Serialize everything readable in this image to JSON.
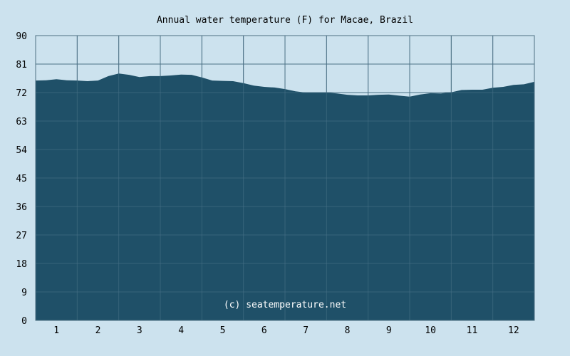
{
  "chart_data": {
    "type": "area",
    "title": "Annual water temperature (F) for Macae, Brazil",
    "xlabel": "",
    "ylabel": "",
    "x_ticks": [
      "1",
      "2",
      "3",
      "4",
      "5",
      "6",
      "7",
      "8",
      "9",
      "10",
      "11",
      "12"
    ],
    "y_ticks": [
      "0",
      "9",
      "18",
      "27",
      "36",
      "45",
      "54",
      "63",
      "72",
      "81",
      "90"
    ],
    "xlim": [
      0.5,
      12.5
    ],
    "ylim": [
      0,
      90
    ],
    "grid": true,
    "legend": "none",
    "series": [
      {
        "x": [
          0.5,
          0.75,
          1.0,
          1.25,
          1.5,
          1.75,
          2.0,
          2.25,
          2.5,
          2.75,
          3.0,
          3.25,
          3.5,
          3.75,
          4.0,
          4.25,
          4.5,
          4.75,
          5.0,
          5.25,
          5.5,
          5.75,
          6.0,
          6.25,
          6.5,
          6.75,
          7.0,
          7.25,
          7.5,
          7.75,
          8.0,
          8.25,
          8.5,
          8.75,
          9.0,
          9.25,
          9.5,
          9.75,
          10.0,
          10.25,
          10.5,
          10.75,
          11.0,
          11.25,
          11.5,
          11.75,
          12.0,
          12.25,
          12.5
        ],
        "y": [
          75.8,
          75.9,
          76.2,
          75.9,
          75.8,
          75.6,
          75.8,
          77.2,
          78.0,
          77.6,
          76.9,
          77.2,
          77.2,
          77.4,
          77.7,
          77.6,
          76.8,
          75.8,
          75.7,
          75.6,
          75.0,
          74.2,
          73.8,
          73.6,
          73.1,
          72.4,
          72.0,
          72.0,
          72.0,
          71.7,
          71.3,
          71.1,
          71.1,
          71.3,
          71.4,
          71.0,
          70.7,
          71.4,
          71.8,
          71.7,
          72.1,
          72.8,
          72.9,
          72.9,
          73.5,
          73.8,
          74.4,
          74.6,
          75.4
        ]
      }
    ],
    "watermark": "(c) seatemperature.net",
    "colors": {
      "background": "#cce2ee",
      "fill": "#1f5068",
      "grid_over_fill": "#4a7289",
      "grid_over_bg": "#4e7083",
      "text": "#000000",
      "watermark": "#ffffff"
    }
  }
}
